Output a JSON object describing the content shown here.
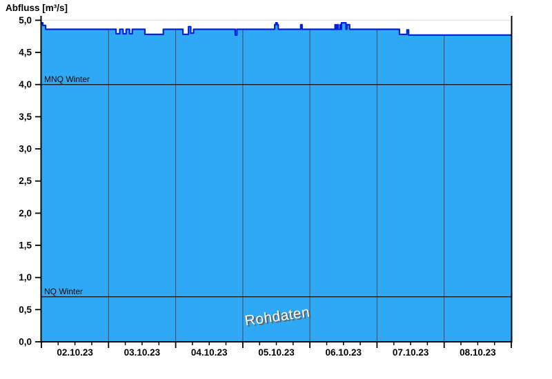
{
  "page": {
    "background": "#ffffff"
  },
  "chart_data": {
    "type": "area",
    "title": "Abfluss [m³/s]",
    "watermark": "Rohdaten",
    "xlim_hours": [
      0,
      168
    ],
    "ylim": [
      0,
      5
    ],
    "grid": "vertical-day-lines",
    "legend_position": "none",
    "y_tick_values": [
      0,
      0.5,
      1,
      1.5,
      2,
      2.5,
      3,
      3.5,
      4,
      4.5,
      5
    ],
    "y_tick_labels": [
      "0,0",
      "0,5",
      "1,0",
      "1,5",
      "2,0",
      "2,5",
      "3,0",
      "3,5",
      "4,0",
      "4,5",
      "5,0"
    ],
    "x_day_labels": [
      "02.10.23",
      "03.10.23",
      "04.10.23",
      "05.10.23",
      "06.10.23",
      "07.10.23",
      "08.10.23"
    ],
    "x_major_tick_hours": [
      0,
      24,
      48,
      72,
      96,
      120,
      144,
      168
    ],
    "x_minor_tick_interval_hours": 6,
    "reference_lines": [
      {
        "label": "MNQ Winter",
        "value": 4.0
      },
      {
        "label": "NQ Winter",
        "value": 0.7
      }
    ],
    "series": [
      {
        "name": "Abfluss Rohdaten",
        "unit": "m³/s",
        "points_h_v": [
          [
            0,
            4.96
          ],
          [
            0.5,
            4.96
          ],
          [
            0.5,
            4.92
          ],
          [
            1.5,
            4.92
          ],
          [
            1.5,
            4.86
          ],
          [
            26.7,
            4.86
          ],
          [
            26.7,
            4.79
          ],
          [
            28.0,
            4.79
          ],
          [
            28.0,
            4.86
          ],
          [
            29.2,
            4.86
          ],
          [
            29.2,
            4.79
          ],
          [
            30.3,
            4.79
          ],
          [
            30.3,
            4.86
          ],
          [
            31.5,
            4.86
          ],
          [
            31.5,
            4.79
          ],
          [
            32.5,
            4.79
          ],
          [
            32.5,
            4.86
          ],
          [
            37.0,
            4.86
          ],
          [
            37.0,
            4.78
          ],
          [
            43.6,
            4.78
          ],
          [
            43.6,
            4.86
          ],
          [
            50.6,
            4.86
          ],
          [
            50.6,
            4.78
          ],
          [
            52.6,
            4.78
          ],
          [
            52.6,
            4.9
          ],
          [
            53.4,
            4.9
          ],
          [
            53.4,
            4.8
          ],
          [
            54.4,
            4.8
          ],
          [
            54.4,
            4.86
          ],
          [
            69.3,
            4.86
          ],
          [
            69.3,
            4.77
          ],
          [
            69.9,
            4.77
          ],
          [
            69.9,
            4.86
          ],
          [
            83.4,
            4.86
          ],
          [
            83.4,
            4.93
          ],
          [
            83.8,
            4.93
          ],
          [
            83.8,
            4.96
          ],
          [
            84.3,
            4.96
          ],
          [
            84.3,
            4.93
          ],
          [
            84.7,
            4.93
          ],
          [
            84.7,
            4.86
          ],
          [
            92.7,
            4.86
          ],
          [
            92.7,
            4.93
          ],
          [
            93.2,
            4.93
          ],
          [
            93.2,
            4.86
          ],
          [
            105.0,
            4.86
          ],
          [
            105.0,
            4.93
          ],
          [
            105.3,
            4.93
          ],
          [
            105.3,
            4.86
          ],
          [
            105.8,
            4.86
          ],
          [
            105.8,
            4.93
          ],
          [
            106.1,
            4.93
          ],
          [
            106.1,
            4.86
          ],
          [
            106.8,
            4.86
          ],
          [
            106.8,
            4.93
          ],
          [
            107.1,
            4.93
          ],
          [
            107.1,
            4.86
          ],
          [
            107.3,
            4.86
          ],
          [
            107.3,
            4.96
          ],
          [
            108.9,
            4.96
          ],
          [
            108.9,
            4.86
          ],
          [
            109.2,
            4.86
          ],
          [
            109.2,
            4.93
          ],
          [
            110.2,
            4.93
          ],
          [
            110.2,
            4.86
          ],
          [
            128.0,
            4.86
          ],
          [
            128.0,
            4.78
          ],
          [
            130.7,
            4.78
          ],
          [
            130.7,
            4.85
          ],
          [
            131.3,
            4.85
          ],
          [
            131.3,
            4.77
          ],
          [
            168,
            4.77
          ]
        ]
      }
    ],
    "colors": {
      "fill": "#2FA9F5",
      "line": "#0020DD",
      "day_gridline": "#4a4a4a",
      "top_gridline": "#e6e6e6",
      "axis": "#000000",
      "reference_line": "#000000",
      "tick_text": "#000000",
      "watermark_text": "#ffffff",
      "watermark_shadow": "#5a5a5a"
    }
  }
}
